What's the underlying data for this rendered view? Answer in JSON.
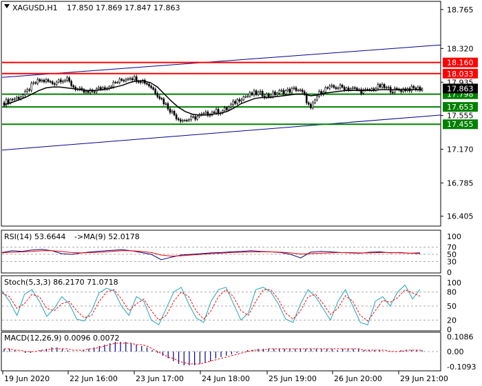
{
  "header": {
    "symbol": "XAGUSD,H1",
    "ohlc": "17.850 17.869 17.847 17.863"
  },
  "colors": {
    "resistance": "#ff0000",
    "support": "#008000",
    "channel": "#00008b",
    "price": "#000000",
    "rsi_main": "#00008b",
    "rsi_ma": "#ff0000",
    "stoch_main": "#1fa5b5",
    "stoch_signal": "#ff0000",
    "macd_hist": "#00008b",
    "macd_signal": "#ff0000",
    "grid": "#aaaaaa"
  },
  "chart_data": [
    {
      "type": "candlestick",
      "title": "XAGUSD,H1",
      "ylim": [
        16.3,
        18.85
      ],
      "y_ticks": [
        "18.765",
        "18.320",
        "17.935",
        "17.555",
        "17.170",
        "16.785",
        "16.405"
      ],
      "x_ticks": [
        "19 Jun 2020",
        "22 Jun 16:00",
        "23 Jun 17:00",
        "24 Jun 18:00",
        "25 Jun 19:00",
        "26 Jun 20:00",
        "29 Jun 21:00"
      ],
      "price_path": [
        17.7,
        17.74,
        17.76,
        17.8,
        17.9,
        17.95,
        17.95,
        17.92,
        17.97,
        17.96,
        17.88,
        17.83,
        17.81,
        17.84,
        17.87,
        17.89,
        17.93,
        17.96,
        18.0,
        17.97,
        17.95,
        17.89,
        17.8,
        17.7,
        17.6,
        17.52,
        17.5,
        17.52,
        17.55,
        17.57,
        17.6,
        17.6,
        17.63,
        17.7,
        17.76,
        17.78,
        17.81,
        17.8,
        17.78,
        17.81,
        17.83,
        17.84,
        17.86,
        17.8,
        17.62,
        17.79,
        17.86,
        17.87,
        17.88,
        17.87,
        17.86,
        17.84,
        17.83,
        17.86,
        17.89,
        17.86,
        17.84,
        17.85,
        17.86,
        17.86,
        17.863
      ],
      "ma_path": [
        17.68,
        17.7,
        17.73,
        17.76,
        17.8,
        17.84,
        17.87,
        17.88,
        17.88,
        17.87,
        17.86,
        17.85,
        17.84,
        17.84,
        17.85,
        17.86,
        17.88,
        17.9,
        17.93,
        17.95,
        17.95,
        17.93,
        17.88,
        17.8,
        17.72,
        17.65,
        17.6,
        17.57,
        17.56,
        17.56,
        17.57,
        17.58,
        17.6,
        17.64,
        17.69,
        17.72,
        17.75,
        17.76,
        17.76,
        17.77,
        17.78,
        17.79,
        17.8,
        17.8,
        17.78,
        17.79,
        17.81,
        17.82,
        17.83,
        17.84,
        17.84,
        17.84,
        17.84,
        17.84,
        17.85,
        17.85,
        17.85,
        17.85,
        17.85,
        17.85,
        17.85
      ],
      "levels": [
        {
          "value": 18.16,
          "label": "18.160",
          "kind": "resistance"
        },
        {
          "value": 18.033,
          "label": "18.033",
          "kind": "resistance"
        },
        {
          "value": 17.798,
          "label": "17.798",
          "kind": "support"
        },
        {
          "value": 17.653,
          "label": "17.653",
          "kind": "support"
        },
        {
          "value": 17.455,
          "label": "17.455",
          "kind": "support"
        }
      ],
      "current_price": {
        "value": 17.863,
        "label": "17.863"
      },
      "channel": [
        {
          "from": 17.99,
          "to": 18.36
        },
        {
          "from": 17.16,
          "to": 17.56
        }
      ]
    },
    {
      "type": "line",
      "title": "RSI(14) 53.6644",
      "subtitle": "->MA(9) 52.0178",
      "ylim": [
        0,
        100
      ],
      "y_ticks": [
        "100",
        "70",
        "50",
        "30",
        "0"
      ],
      "levels": [
        70,
        50,
        30
      ],
      "series": [
        {
          "name": "RSI(14)",
          "values": [
            55,
            60,
            58,
            62,
            64,
            60,
            52,
            50,
            54,
            57,
            59,
            61,
            63,
            60,
            55,
            50,
            35,
            42,
            48,
            50,
            52,
            54,
            55,
            57,
            58,
            60,
            58,
            57,
            55,
            50,
            40,
            56,
            58,
            57,
            55,
            54,
            53,
            56,
            57,
            54,
            55,
            53,
            54
          ]
        },
        {
          "name": "MA(9)",
          "values": [
            54,
            56,
            57,
            58,
            60,
            60,
            58,
            55,
            54,
            55,
            56,
            58,
            60,
            60,
            58,
            55,
            48,
            45,
            46,
            48,
            50,
            52,
            53,
            55,
            56,
            57,
            57,
            57,
            56,
            54,
            51,
            52,
            53,
            54,
            55,
            55,
            54,
            54,
            55,
            55,
            54,
            53,
            52
          ]
        }
      ]
    },
    {
      "type": "line",
      "title": "Stoch(5,3,3) 86.2170 71.0718",
      "ylim": [
        0,
        100
      ],
      "y_ticks": [
        "100",
        "80",
        "50",
        "20",
        "0"
      ],
      "levels": [
        80,
        20
      ],
      "series": [
        {
          "name": "main",
          "values": [
            82,
            60,
            30,
            75,
            85,
            60,
            28,
            45,
            70,
            55,
            22,
            18,
            40,
            78,
            88,
            82,
            50,
            30,
            70,
            60,
            20,
            10,
            45,
            80,
            90,
            55,
            25,
            15,
            60,
            85,
            90,
            55,
            20,
            35,
            85,
            90,
            80,
            55,
            22,
            15,
            55,
            85,
            70,
            45,
            20,
            60,
            85,
            50,
            15,
            10,
            60,
            70,
            50,
            80,
            95,
            65,
            86
          ]
        },
        {
          "name": "signal",
          "values": [
            78,
            70,
            45,
            55,
            75,
            70,
            45,
            40,
            55,
            60,
            40,
            25,
            30,
            60,
            80,
            85,
            65,
            40,
            55,
            65,
            40,
            20,
            30,
            60,
            80,
            70,
            40,
            22,
            40,
            70,
            85,
            70,
            40,
            30,
            60,
            85,
            85,
            65,
            35,
            22,
            40,
            70,
            75,
            55,
            32,
            45,
            72,
            60,
            30,
            18,
            40,
            62,
            58,
            68,
            85,
            78,
            71
          ]
        }
      ]
    },
    {
      "type": "bar",
      "title": "MACD(12,26,9) 0.0096 0.0072",
      "ylim": [
        -0.13,
        0.13
      ],
      "y_ticks": [
        "0.1086",
        "0.00",
        "-0.1093"
      ],
      "series": [
        {
          "name": "MACD",
          "values": [
            0.02,
            0.02,
            0.01,
            0.0,
            -0.01,
            -0.01,
            0.0,
            0.01,
            0.02,
            0.03,
            0.03,
            0.02,
            0.01,
            0.0,
            0.0,
            0.01,
            0.02,
            0.03,
            0.04,
            0.05,
            0.06,
            0.07,
            0.07,
            0.07,
            0.06,
            0.05,
            0.04,
            0.03,
            0.01,
            -0.01,
            -0.03,
            -0.05,
            -0.07,
            -0.09,
            -0.1,
            -0.1,
            -0.1,
            -0.09,
            -0.08,
            -0.07,
            -0.05,
            -0.04,
            -0.03,
            -0.02,
            -0.01,
            0.0,
            0.01,
            0.01,
            0.02,
            0.02,
            0.02,
            0.02,
            0.02,
            0.02,
            0.02,
            0.02,
            0.02,
            0.02,
            0.02,
            0.02,
            0.02,
            0.02,
            0.02,
            0.01,
            0.02,
            0.02,
            0.02,
            0.02,
            0.01,
            0.01,
            0.01,
            0.01,
            0.0,
            0.0,
            0.0,
            0.01,
            0.01,
            0.01,
            0.01,
            0.01
          ]
        },
        {
          "name": "Signal",
          "values": [
            0.02,
            0.02,
            0.01,
            0.01,
            0.0,
            0.0,
            0.0,
            0.01,
            0.01,
            0.02,
            0.02,
            0.02,
            0.02,
            0.01,
            0.01,
            0.01,
            0.02,
            0.02,
            0.03,
            0.04,
            0.05,
            0.06,
            0.06,
            0.06,
            0.06,
            0.05,
            0.05,
            0.04,
            0.02,
            0.0,
            -0.02,
            -0.04,
            -0.05,
            -0.07,
            -0.08,
            -0.09,
            -0.09,
            -0.09,
            -0.08,
            -0.07,
            -0.06,
            -0.05,
            -0.04,
            -0.03,
            -0.02,
            -0.01,
            0.0,
            0.01,
            0.01,
            0.01,
            0.02,
            0.02,
            0.02,
            0.02,
            0.02,
            0.02,
            0.02,
            0.02,
            0.02,
            0.02,
            0.02,
            0.02,
            0.02,
            0.02,
            0.02,
            0.02,
            0.02,
            0.02,
            0.01,
            0.01,
            0.01,
            0.01,
            0.01,
            0.0,
            0.0,
            0.0,
            0.01,
            0.01,
            0.01,
            0.01
          ]
        }
      ]
    }
  ]
}
